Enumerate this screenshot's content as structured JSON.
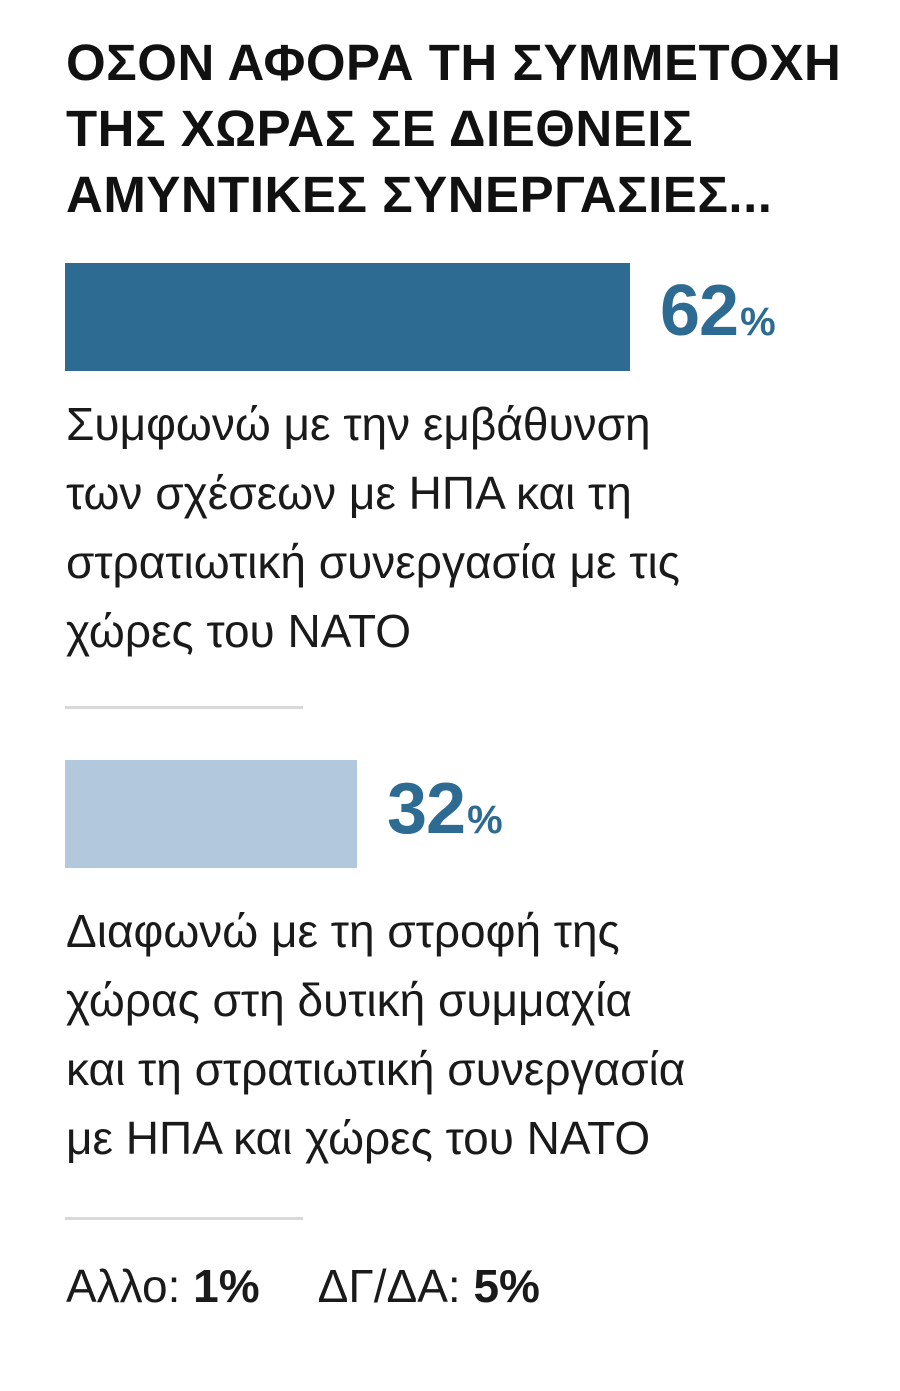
{
  "chart_data": {
    "type": "bar",
    "orientation": "horizontal",
    "title_lines": [
      "ΟΣΟΝ ΑΦΟΡΑ ΤΗ ΣΥΜΜΕΤΟΧΗ",
      "ΤΗΣ ΧΩΡΑΣ ΣΕ ΔΙΕΘΝΕΙΣ",
      "ΑΜΥΝΤΙΚΕΣ ΣΥΝΕΡΓΑΣΙΕΣ..."
    ],
    "unit": "%",
    "xlim": [
      0,
      100
    ],
    "bars": [
      {
        "value": 62,
        "color": "#2d6b93",
        "label_lines": [
          "Συμφωνώ με την εμβάθυνση",
          "των σχέσεων με ΗΠΑ και τη",
          "στρατιωτική συνεργασία με τις",
          "χώρες του ΝΑΤΟ"
        ]
      },
      {
        "value": 32,
        "color": "#b2c8dc",
        "label_lines": [
          "Διαφωνώ με τη στροφή της",
          "χώρας στη δυτική συμμαχία",
          "και τη στρατιωτική συνεργασία",
          "με ΗΠΑ και χώρες του ΝΑΤΟ"
        ]
      }
    ],
    "others": [
      {
        "label": "Αλλο:",
        "value": "1%"
      },
      {
        "label": "ΔΓ/ΔΑ:",
        "value": "5%"
      }
    ]
  }
}
